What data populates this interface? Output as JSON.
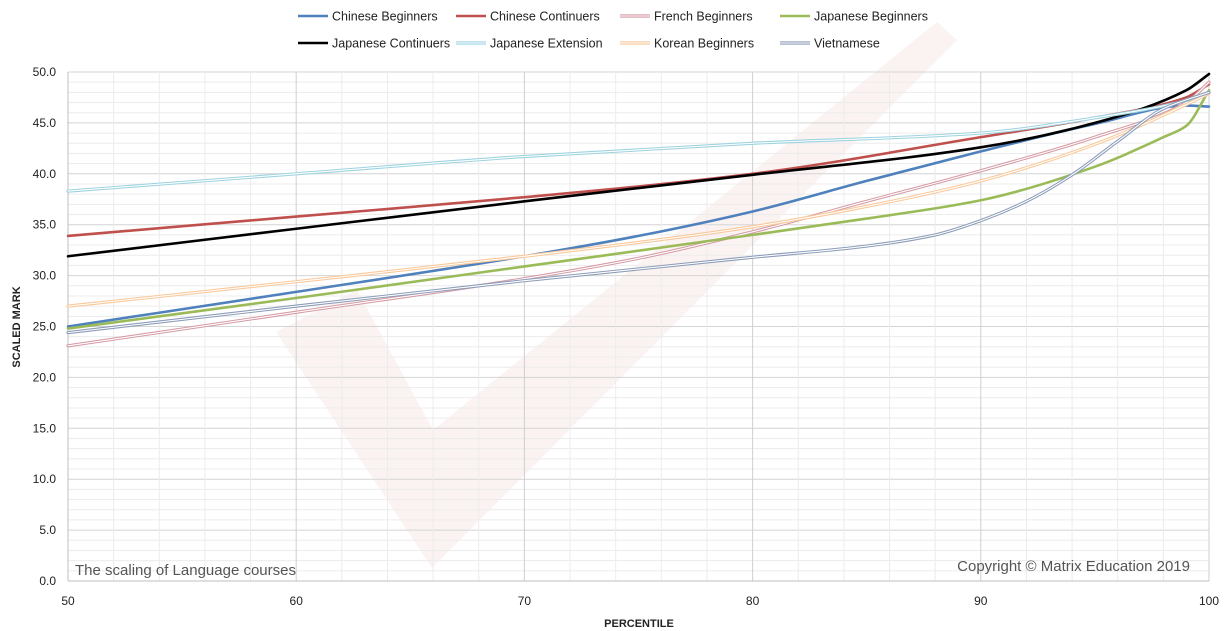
{
  "chart_data": {
    "type": "line",
    "xlabel": "PERCENTILE",
    "ylabel": "SCALED MARK",
    "xlim": [
      50,
      100
    ],
    "ylim": [
      0,
      50
    ],
    "x_ticks": [
      50,
      60,
      70,
      80,
      90,
      100
    ],
    "y_ticks": [
      "0.0",
      "5.0",
      "10.0",
      "15.0",
      "20.0",
      "25.0",
      "30.0",
      "35.0",
      "40.0",
      "45.0",
      "50.0"
    ],
    "grid": true,
    "legend_position": "top",
    "annotation_left": "The scaling of Language courses",
    "annotation_right": "Copyright © Matrix Education 2019",
    "series": [
      {
        "name": "Chinese Beginners",
        "color": "#4f81bd",
        "style": "solid",
        "x": [
          50,
          60,
          70,
          75,
          80,
          85,
          90,
          95,
          99,
          100
        ],
        "y": [
          25.0,
          28.4,
          31.9,
          33.9,
          36.3,
          39.3,
          42.2,
          44.9,
          46.7,
          46.6
        ]
      },
      {
        "name": "Chinese Continuers",
        "color": "#c0504d",
        "style": "solid",
        "x": [
          50,
          60,
          70,
          80,
          90,
          95,
          99,
          100
        ],
        "y": [
          33.9,
          35.8,
          37.7,
          40.0,
          43.6,
          45.5,
          47.5,
          48.8
        ]
      },
      {
        "name": "French Beginners",
        "color": "#d49aa4",
        "style": "double",
        "x": [
          50,
          60,
          70,
          75,
          80,
          85,
          90,
          95,
          99,
          100
        ],
        "y": [
          23.1,
          26.4,
          29.7,
          31.7,
          34.3,
          37.3,
          40.3,
          43.6,
          47.0,
          49.0
        ]
      },
      {
        "name": "Japanese Beginners",
        "color": "#9bbb59",
        "style": "solid",
        "x": [
          50,
          60,
          70,
          80,
          85,
          90,
          95,
          98,
          99,
          100
        ],
        "y": [
          24.8,
          27.8,
          30.9,
          34.0,
          35.6,
          37.4,
          40.7,
          43.6,
          44.7,
          48.2
        ]
      },
      {
        "name": "Japanese Continuers",
        "color": "#000000",
        "style": "solid",
        "x": [
          50,
          60,
          70,
          80,
          90,
          95,
          99,
          100
        ],
        "y": [
          31.9,
          34.6,
          37.3,
          39.9,
          42.6,
          45.0,
          48.2,
          49.8
        ]
      },
      {
        "name": "Japanese Extension",
        "color": "#9dd3e0",
        "style": "double",
        "x": [
          50,
          60,
          70,
          80,
          90,
          95,
          99,
          100
        ],
        "y": [
          38.3,
          40.0,
          41.7,
          43.0,
          44.0,
          45.5,
          47.2,
          48.0
        ]
      },
      {
        "name": "Korean Beginners",
        "color": "#f9c89a",
        "style": "double",
        "x": [
          50,
          60,
          70,
          80,
          85,
          90,
          95,
          99,
          100
        ],
        "y": [
          27.0,
          29.4,
          31.9,
          34.8,
          36.8,
          39.3,
          42.9,
          46.8,
          47.9
        ]
      },
      {
        "name": "Vietnamese",
        "color": "#8c9cb8",
        "style": "double",
        "x": [
          50,
          60,
          70,
          80,
          85,
          88,
          90,
          92,
          94,
          96,
          98,
          100
        ],
        "y": [
          24.4,
          27.0,
          29.5,
          31.8,
          32.9,
          34.0,
          35.4,
          37.3,
          39.9,
          43.2,
          46.4,
          48.0
        ]
      }
    ]
  }
}
